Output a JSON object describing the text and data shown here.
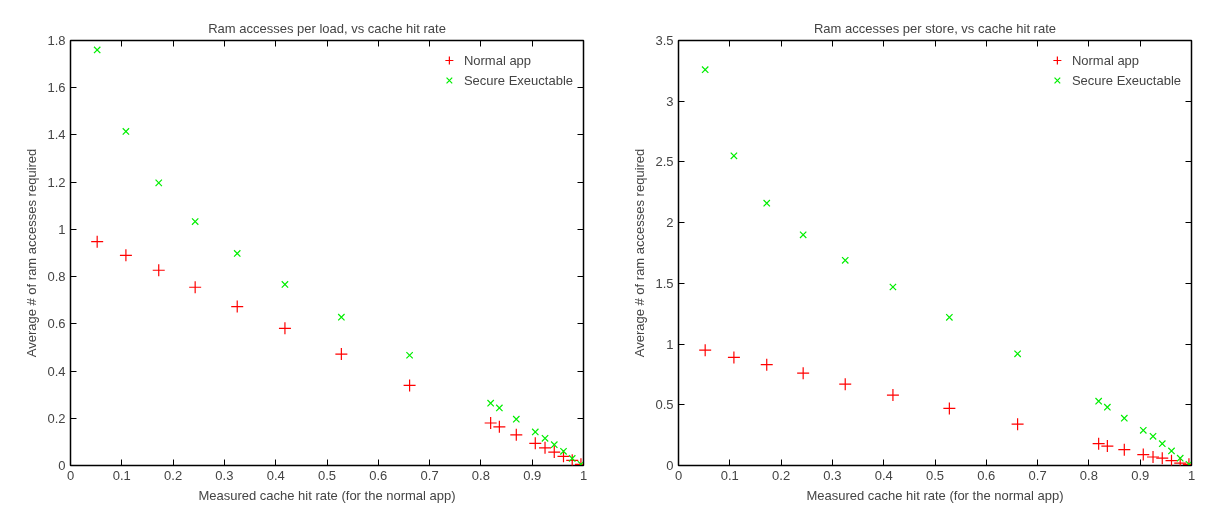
{
  "chart_data": [
    {
      "type": "scatter",
      "title": "Ram accesses per load, vs cache hit rate",
      "xlabel": "Measured cache hit rate (for the normal app)",
      "ylabel": "Average # of ram accesses required",
      "xlim": [
        0,
        1
      ],
      "ylim": [
        0,
        1.8
      ],
      "xticks": [
        0,
        0.1,
        0.2,
        0.3,
        0.4,
        0.5,
        0.6,
        0.7,
        0.8,
        0.9,
        1
      ],
      "yticks": [
        0,
        0.2,
        0.4,
        0.6,
        0.8,
        1,
        1.2,
        1.4,
        1.6,
        1.8
      ],
      "grid": false,
      "legend": "top right",
      "x": [
        0.052,
        0.108,
        0.172,
        0.243,
        0.325,
        0.418,
        0.528,
        0.661,
        0.819,
        0.836,
        0.869,
        0.906,
        0.925,
        0.943,
        0.961,
        0.978,
        0.995
      ],
      "series": [
        {
          "name": "Normal app",
          "color": "#ff0000",
          "marker": "cross",
          "values": [
            0.948,
            0.89,
            0.827,
            0.755,
            0.673,
            0.581,
            0.472,
            0.339,
            0.18,
            0.164,
            0.13,
            0.094,
            0.075,
            0.057,
            0.039,
            0.022,
            0.005
          ]
        },
        {
          "name": "Secure Exeuctable",
          "color": "#00ee00",
          "marker": "x",
          "values": [
            1.76,
            1.415,
            1.197,
            1.033,
            0.898,
            0.767,
            0.628,
            0.467,
            0.264,
            0.244,
            0.196,
            0.142,
            0.115,
            0.088,
            0.06,
            0.03,
            0.005
          ]
        }
      ]
    },
    {
      "type": "scatter",
      "title": "Ram accesses per store, vs cache hit rate",
      "xlabel": "Measured cache hit rate (for the normal app)",
      "ylabel": "Average # of ram accesses required",
      "xlim": [
        0,
        1
      ],
      "ylim": [
        0,
        3.5
      ],
      "xticks": [
        0,
        0.1,
        0.2,
        0.3,
        0.4,
        0.5,
        0.6,
        0.7,
        0.8,
        0.9,
        1
      ],
      "yticks": [
        0,
        0.5,
        1,
        1.5,
        2,
        2.5,
        3,
        3.5
      ],
      "grid": false,
      "legend": "top right",
      "x": [
        0.052,
        0.108,
        0.172,
        0.243,
        0.325,
        0.418,
        0.528,
        0.661,
        0.819,
        0.836,
        0.869,
        0.906,
        0.925,
        0.943,
        0.961,
        0.978,
        0.995
      ],
      "series": [
        {
          "name": "Normal app",
          "color": "#ff0000",
          "marker": "cross",
          "values": [
            0.95,
            0.89,
            0.83,
            0.76,
            0.67,
            0.58,
            0.47,
            0.34,
            0.18,
            0.16,
            0.13,
            0.09,
            0.07,
            0.06,
            0.04,
            0.02,
            0.01
          ]
        },
        {
          "name": "Secure Exeuctable",
          "color": "#00ee00",
          "marker": "x",
          "values": [
            3.26,
            2.55,
            2.16,
            1.9,
            1.69,
            1.47,
            1.22,
            0.92,
            0.53,
            0.48,
            0.39,
            0.29,
            0.24,
            0.18,
            0.12,
            0.06,
            0.01
          ]
        }
      ]
    }
  ]
}
